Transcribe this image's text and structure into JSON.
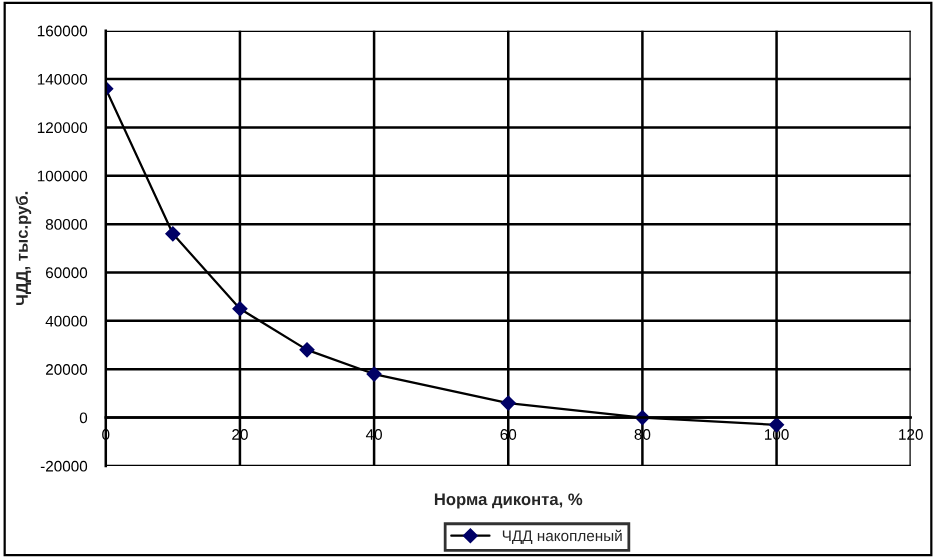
{
  "chart_data": {
    "type": "line",
    "xlabel": "Норма диконта, %",
    "ylabel": "ЧДД, тыс.руб.",
    "x": [
      0,
      10,
      20,
      30,
      40,
      60,
      80,
      100
    ],
    "series": [
      {
        "name": "ЧДД накопленый",
        "color": "#000066",
        "values": [
          136000,
          76000,
          45000,
          28000,
          18000,
          6000,
          0,
          -3000
        ]
      }
    ],
    "xlim": [
      0,
      120
    ],
    "xticks": [
      0,
      20,
      40,
      60,
      80,
      100,
      120
    ],
    "ylim": [
      -20000,
      160000
    ],
    "yticks": [
      -20000,
      0,
      20000,
      40000,
      60000,
      80000,
      100000,
      120000,
      140000,
      160000
    ],
    "grid": true,
    "legend": "bottom right",
    "marker": "diamond",
    "line_style": "solid"
  }
}
